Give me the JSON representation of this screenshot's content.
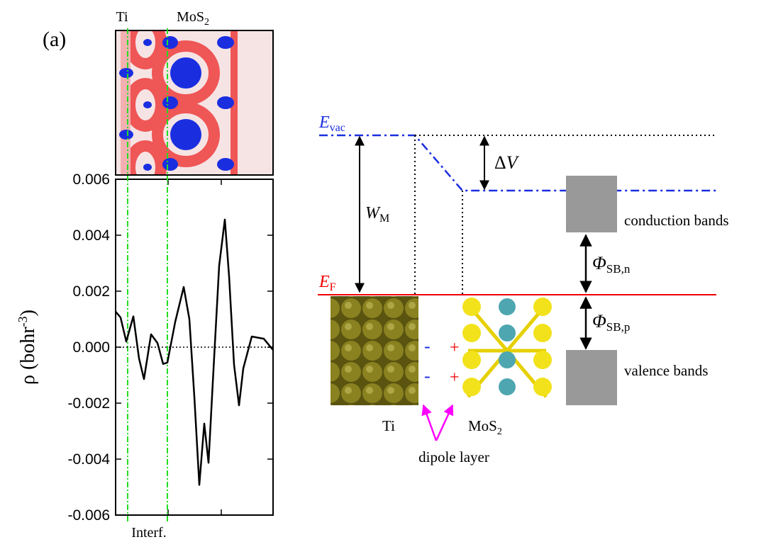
{
  "chart_data": {
    "type": "line",
    "panel_label": "(a)",
    "y_label": {
      "main": "ρ (bohr",
      "sup": "-3",
      "end": ")"
    },
    "top_labels": [
      {
        "main": "Ti"
      },
      {
        "main": "MoS",
        "sub": "2"
      }
    ],
    "bottom_label": "Interf.",
    "xlim": [
      0,
      222
    ],
    "ylim": [
      -0.006,
      0.006
    ],
    "yticks": [
      -0.006,
      -0.004,
      -0.002,
      {
        "value": 0,
        "label": "0.000"
      },
      0.002,
      0.004,
      0.006
    ],
    "x": [
      0,
      7,
      15,
      25,
      33,
      40,
      50,
      59,
      67,
      73,
      84,
      96,
      104,
      111,
      118,
      125,
      131,
      137,
      146,
      154,
      160,
      167,
      174,
      180,
      192,
      209,
      222
    ],
    "series": [
      {
        "name": null,
        "color": "#000000",
        "values": [
          0.00127,
          0.00106,
          0.0002,
          0.0011,
          -0.0004,
          -0.00114,
          0.00046,
          0.00015,
          -0.0006,
          -0.00055,
          0.0009,
          0.00215,
          0.001,
          -0.00177,
          -0.00492,
          -0.00273,
          -0.00413,
          -0.00127,
          0.00291,
          0.00456,
          0.00253,
          -0.00063,
          -0.00208,
          -0.00076,
          0.00038,
          0.0003,
          -0.0001
        ]
      }
    ]
  },
  "diagram": {
    "e_vac": {
      "main": "E",
      "sub": "vac"
    },
    "w_m": {
      "main": "W",
      "sub": "M"
    },
    "delta_v": {
      "main": "Δ",
      "sub": "V"
    },
    "e_f": {
      "main": "E",
      "sub": "F"
    },
    "phi_n": {
      "main": "Φ",
      "sub": "SB,n"
    },
    "phi_p": {
      "main": "Φ",
      "sub": "SB,p"
    },
    "conduction": "conduction bands",
    "valence": "valence bands",
    "ti": "Ti",
    "mos2": {
      "main": "MoS",
      "sub": "2"
    },
    "dipole": "dipole layer",
    "minus": [
      "-",
      "-"
    ],
    "plus": [
      "+",
      "+"
    ]
  }
}
